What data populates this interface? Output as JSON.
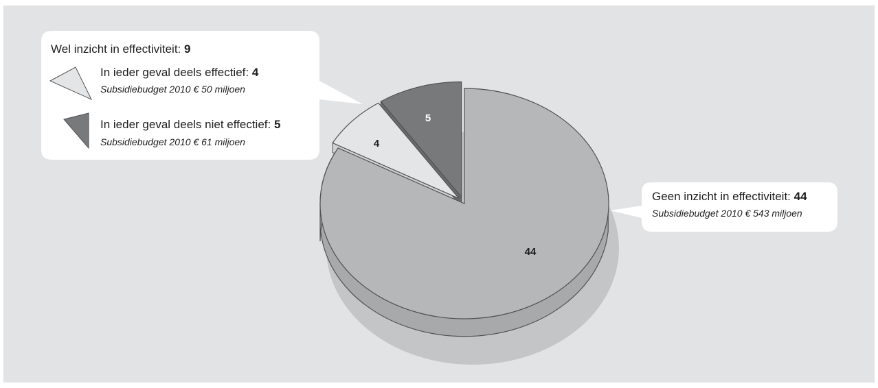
{
  "chart_data": {
    "type": "pie",
    "slices": [
      {
        "label": "Geen inzicht in effectiviteit",
        "value": 44,
        "subtitle": "Subsidiebudget 2010 € 543 miljoen",
        "color": "#b6b7b9",
        "side": "#a8a9ab",
        "label_color": "#1e1e1e"
      },
      {
        "label": "In ieder geval deels effectief",
        "value": 4,
        "subtitle": "Subsidiebudget 2010 € 50 miljoen",
        "color": "#e4e5e6",
        "side": "#d0d1d3",
        "label_color": "#1e1e1e"
      },
      {
        "label": "In ieder geval deels niet effectief",
        "value": 5,
        "subtitle": "Subsidiebudget 2010 € 61 miljoen",
        "color": "#78797b",
        "side": "#6a6b6d",
        "label_color": "#ffffff"
      }
    ],
    "group": {
      "label": "Wel inzicht in effectiviteit",
      "value": 9
    },
    "background_color": "#e2e3e4",
    "box_color": "#ffffff"
  },
  "callouts": {
    "group": {
      "text": "Wel inzicht in effectiviteit: ",
      "value": "9"
    },
    "effective": {
      "text": "In ieder geval deels effectief: ",
      "value": "4",
      "sub": "Subsidiebudget 2010 € 50 miljoen"
    },
    "not_effective": {
      "text": "In ieder geval deels niet effectief: ",
      "value": "5",
      "sub": "Subsidiebudget 2010 € 61 miljoen"
    },
    "no_insight": {
      "text": "Geen inzicht in effectiviteit: ",
      "value": "44",
      "sub": "Subsidiebudget 2010 € 543 miljoen"
    }
  }
}
